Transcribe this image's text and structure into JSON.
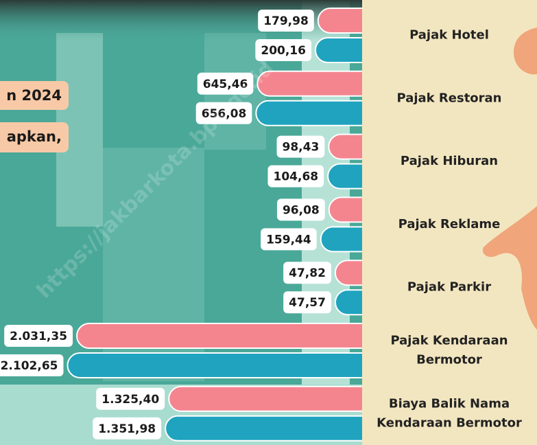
{
  "chart_data": {
    "type": "bar",
    "orientation": "horizontal",
    "annotations": [
      "n 2024",
      "apkan,"
    ],
    "watermark": "https://jakbarkota.bps.go.id",
    "categories": [
      "Pajak Hotel",
      "Pajak Restoran",
      "Pajak Hiburan",
      "Pajak Reklame",
      "Pajak Parkir",
      "Pajak Kendaraan Bermotor",
      "Biaya Balik Nama Kendaraan Bermotor"
    ],
    "series": [
      {
        "color": "#f4858f",
        "values": [
          179.98,
          645.46,
          98.43,
          96.08,
          47.82,
          2031.35,
          1325.4
        ],
        "value_labels": [
          "179,98",
          "645,46",
          "98,43",
          "96,08",
          "47,82",
          "2.031,35",
          "1.325,40"
        ]
      },
      {
        "color": "#1fa3bf",
        "values": [
          200.16,
          656.08,
          104.68,
          159.44,
          47.57,
          2102.65,
          1351.98
        ],
        "value_labels": [
          "200,16",
          "656,08",
          "104,68",
          "159,44",
          "47,57",
          "2.102,65",
          "1.351,98"
        ]
      }
    ]
  }
}
